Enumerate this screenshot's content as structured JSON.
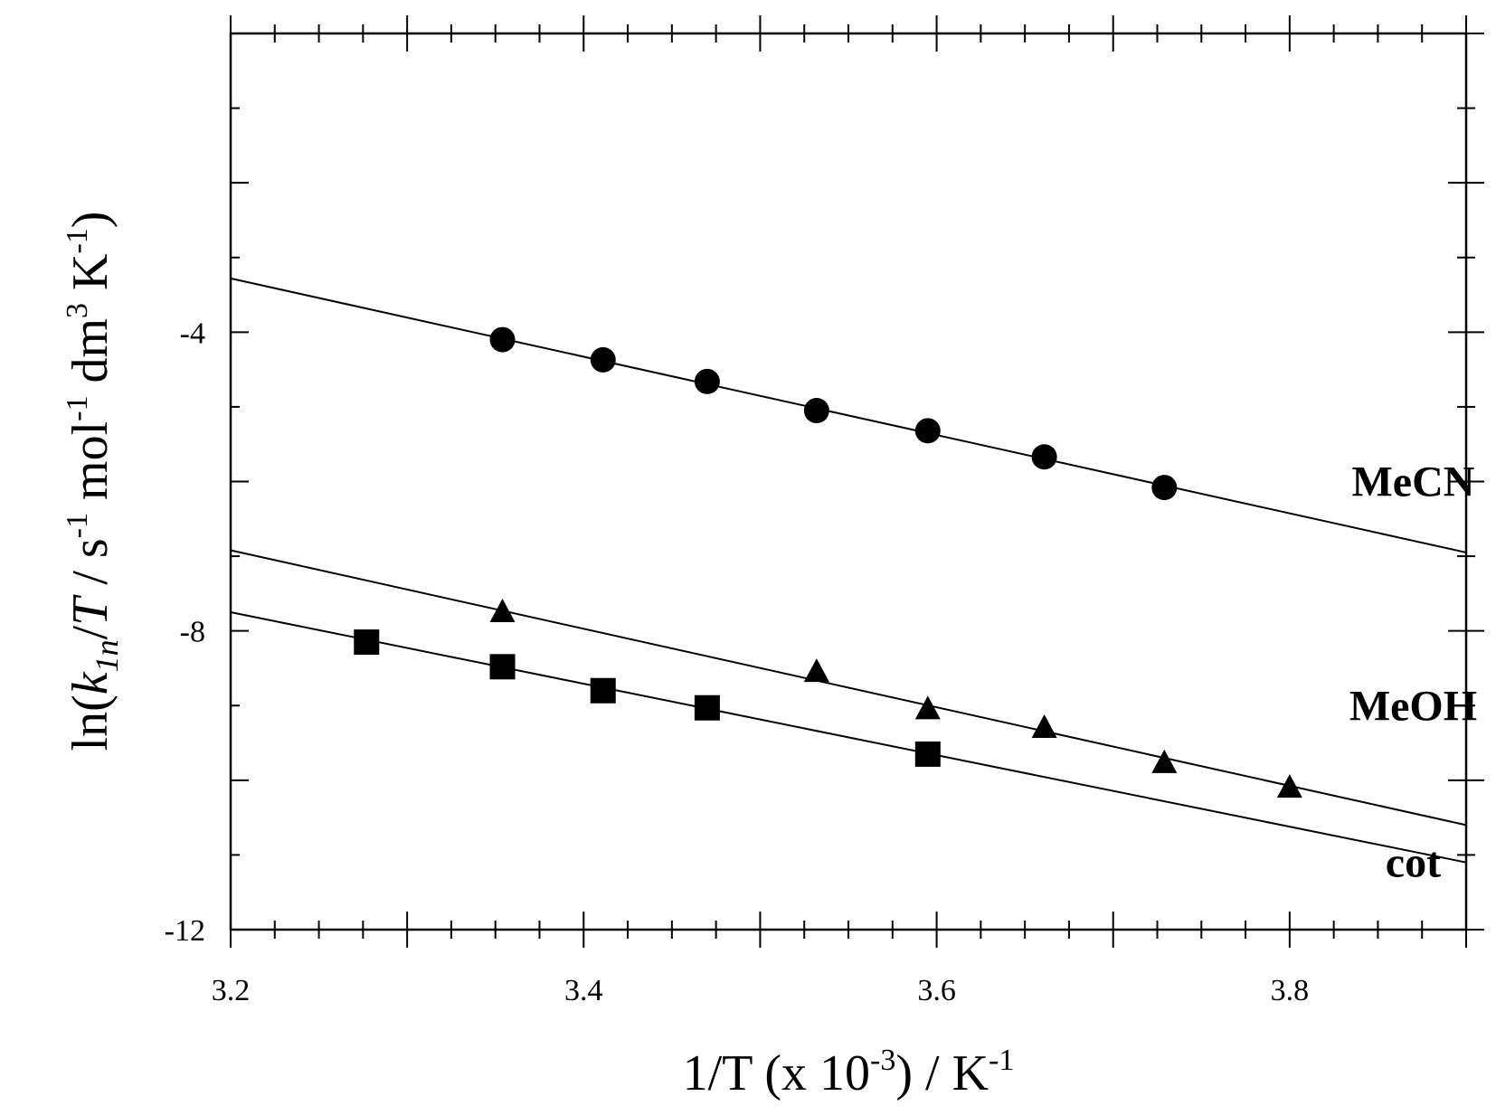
{
  "chart_data": {
    "type": "scatter",
    "title": "",
    "xlabel": {
      "main": "1/T (x 10",
      "exp1": "-3",
      "mid": ") / K",
      "exp2": "-1"
    },
    "ylabel": {
      "p1": "ln(",
      "k": "k",
      "sub": "1n",
      "p2": "/",
      "T": "T",
      "p3": " / s",
      "e1": "-1",
      "p4": " mol",
      "e2": "-1",
      "p5": " dm",
      "e3": "3",
      "p6": " K",
      "e4": "-1",
      "p7": ")"
    },
    "xlim": [
      3.2,
      3.9
    ],
    "ylim": [
      -12,
      0
    ],
    "xticks": [
      {
        "value": 3.2,
        "label": "3.2"
      },
      {
        "value": 3.4,
        "label": "3.4"
      },
      {
        "value": 3.6,
        "label": "3.6"
      },
      {
        "value": 3.8,
        "label": "3.8"
      }
    ],
    "yticks": [
      {
        "value": -4,
        "label": "-4"
      },
      {
        "value": -8,
        "label": "-8"
      },
      {
        "value": -12,
        "label": "-12"
      }
    ],
    "series": [
      {
        "name": "MeCN",
        "marker": "circle",
        "points": [
          {
            "x": 3.354,
            "y": -4.1
          },
          {
            "x": 3.411,
            "y": -4.37
          },
          {
            "x": 3.47,
            "y": -4.66
          },
          {
            "x": 3.532,
            "y": -5.05
          },
          {
            "x": 3.595,
            "y": -5.32
          },
          {
            "x": 3.661,
            "y": -5.67
          },
          {
            "x": 3.729,
            "y": -6.08
          }
        ],
        "fit_line": [
          {
            "x": 3.2,
            "y": -3.28
          },
          {
            "x": 3.9,
            "y": -6.95
          }
        ],
        "label_pos": {
          "x": 3.87,
          "y": -6.0
        }
      },
      {
        "name": "MeOH",
        "marker": "triangle",
        "points": [
          {
            "x": 3.354,
            "y": -7.75
          },
          {
            "x": 3.532,
            "y": -8.55
          },
          {
            "x": 3.595,
            "y": -9.05
          },
          {
            "x": 3.661,
            "y": -9.3
          },
          {
            "x": 3.729,
            "y": -9.77
          },
          {
            "x": 3.8,
            "y": -10.1
          }
        ],
        "fit_line": [
          {
            "x": 3.2,
            "y": -6.92
          },
          {
            "x": 3.9,
            "y": -10.6
          }
        ],
        "label_pos": {
          "x": 3.87,
          "y": -9.0
        }
      },
      {
        "name": "cot",
        "marker": "square",
        "points": [
          {
            "x": 3.277,
            "y": -8.15
          },
          {
            "x": 3.354,
            "y": -8.48
          },
          {
            "x": 3.411,
            "y": -8.8
          },
          {
            "x": 3.47,
            "y": -9.03
          },
          {
            "x": 3.595,
            "y": -9.65
          }
        ],
        "fit_line": [
          {
            "x": 3.2,
            "y": -7.75
          },
          {
            "x": 3.9,
            "y": -11.1
          }
        ],
        "label_pos": {
          "x": 3.87,
          "y": -11.1
        }
      }
    ],
    "grid": false,
    "legend": "none"
  }
}
